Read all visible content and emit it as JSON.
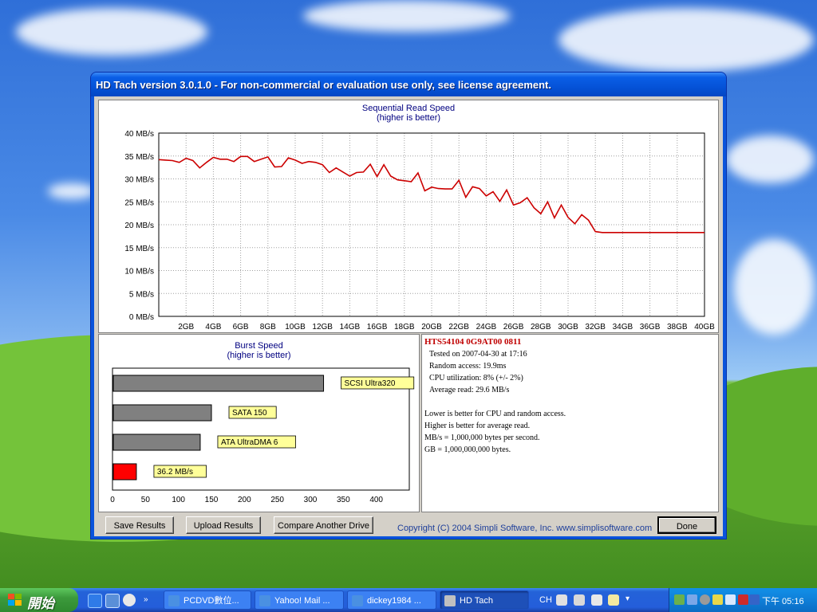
{
  "window": {
    "title": "HD Tach version 3.0.1.0  - For non-commercial or evaluation use only, see license agreement."
  },
  "sequential_chart": {
    "title_line1": "Sequential Read Speed",
    "title_line2": "(higher is better)",
    "y_ticks": [
      "40 MB/s",
      "35 MB/s",
      "30 MB/s",
      "25 MB/s",
      "20 MB/s",
      "15 MB/s",
      "10 MB/s",
      "5 MB/s",
      "0 MB/s"
    ],
    "x_ticks": [
      "2GB",
      "4GB",
      "6GB",
      "8GB",
      "10GB",
      "12GB",
      "14GB",
      "16GB",
      "18GB",
      "20GB",
      "22GB",
      "24GB",
      "26GB",
      "28GB",
      "30GB",
      "32GB",
      "34GB",
      "36GB",
      "38GB",
      "40GB"
    ],
    "line_color": "#cc0000"
  },
  "burst_chart": {
    "title_line1": "Burst Speed",
    "title_line2": "(higher is better)",
    "x_ticks": [
      "0",
      "50",
      "100",
      "150",
      "200",
      "250",
      "300",
      "350",
      "400"
    ],
    "bar_color": "#808080",
    "highlight_color": "#ff0000",
    "label_bg": "#ffff99"
  },
  "chart_data": [
    {
      "type": "line",
      "title": "Sequential Read Speed",
      "subtitle": "(higher is better)",
      "xlabel": "",
      "ylabel": "",
      "xlim": [
        0,
        40
      ],
      "ylim": [
        0,
        40
      ],
      "x_unit": "GB",
      "y_unit": "MB/s",
      "grid": true,
      "series": [
        {
          "x": [
            0,
            0.5,
            1,
            1.5,
            2,
            2.5,
            3,
            3.5,
            4,
            4.5,
            5,
            5.5,
            6,
            6.5,
            7,
            7.5,
            8,
            8.5,
            9,
            9.5,
            10,
            10.5,
            11,
            11.5,
            12,
            12.5,
            13,
            13.5,
            14,
            14.5,
            15,
            15.5,
            16,
            16.5,
            17,
            17.5,
            18,
            18.5,
            19,
            19.5,
            20,
            20.5,
            21,
            21.5,
            22,
            22.5,
            23,
            23.5,
            24,
            24.5,
            25,
            25.5,
            26,
            26.5,
            27,
            27.5,
            28,
            28.5,
            29,
            29.5,
            30,
            30.5,
            31,
            31.5,
            32,
            32.5,
            33,
            33.5,
            34,
            34.5,
            35,
            35.5,
            36,
            36.5,
            37,
            37.5,
            38,
            38.5,
            39,
            39.5,
            40
          ],
          "y": [
            34.2,
            34.1,
            34.0,
            33.6,
            34.5,
            34.0,
            32.4,
            33.6,
            34.7,
            34.3,
            34.3,
            33.8,
            34.9,
            34.9,
            33.8,
            34.3,
            34.8,
            32.6,
            32.7,
            34.6,
            34.1,
            33.4,
            33.8,
            33.6,
            33.1,
            31.4,
            32.4,
            31.5,
            30.6,
            31.4,
            31.5,
            33.2,
            30.5,
            33.1,
            30.6,
            29.8,
            29.6,
            29.4,
            31.3,
            27.4,
            28.2,
            27.9,
            27.8,
            27.8,
            29.7,
            26.0,
            28.3,
            27.9,
            26.3,
            27.2,
            25.1,
            27.6,
            24.3,
            24.8,
            25.9,
            23.7,
            22.4,
            25.0,
            21.5,
            24.3,
            21.6,
            20.2,
            22.2,
            21.0,
            18.5,
            18.3,
            18.3,
            18.3,
            18.3,
            18.3,
            18.3,
            18.3,
            18.3,
            18.3,
            18.3,
            18.3,
            18.3,
            18.3,
            18.3,
            18.3,
            18.3
          ]
        }
      ]
    },
    {
      "type": "bar",
      "orientation": "horizontal",
      "title": "Burst Speed",
      "subtitle": "(higher is better)",
      "xlim": [
        0,
        450
      ],
      "grid": false,
      "categories": [
        "SCSI Ultra320",
        "SATA 150",
        "ATA UltraDMA 6",
        "36.2 MB/s"
      ],
      "values": [
        320,
        150,
        133,
        36.2
      ]
    }
  ],
  "info": {
    "drive": "HTS54104 0G9AT00 0811",
    "tested": "Tested on 2007-04-30 at 17:16",
    "random_access": "Random access: 19.9ms",
    "cpu": "CPU utilization: 8% (+/- 2%)",
    "average_read": "Average read: 29.6 MB/s",
    "note1": "Lower is better for CPU and random access.",
    "note2": "Higher is better for average read.",
    "note3": "MB/s = 1,000,000 bytes per second.",
    "note4": "GB = 1,000,000,000 bytes."
  },
  "buttons": {
    "save": "Save Results",
    "upload": "Upload Results",
    "compare": "Compare Another Drive",
    "done": "Done"
  },
  "copyright": "Copyright (C) 2004 Simpli Software, Inc. www.simplisoftware.com",
  "taskbar": {
    "start": "開始",
    "items": [
      {
        "label": "PCDVD數位...",
        "icon": "ie-icon"
      },
      {
        "label": "Yahoo! Mail ...",
        "icon": "ie-icon"
      },
      {
        "label": "dickey1984 ...",
        "icon": "ie-icon"
      },
      {
        "label": "HD Tach",
        "icon": "hdtach-icon"
      }
    ],
    "lang": "CH",
    "clock": "下午 05:16"
  }
}
